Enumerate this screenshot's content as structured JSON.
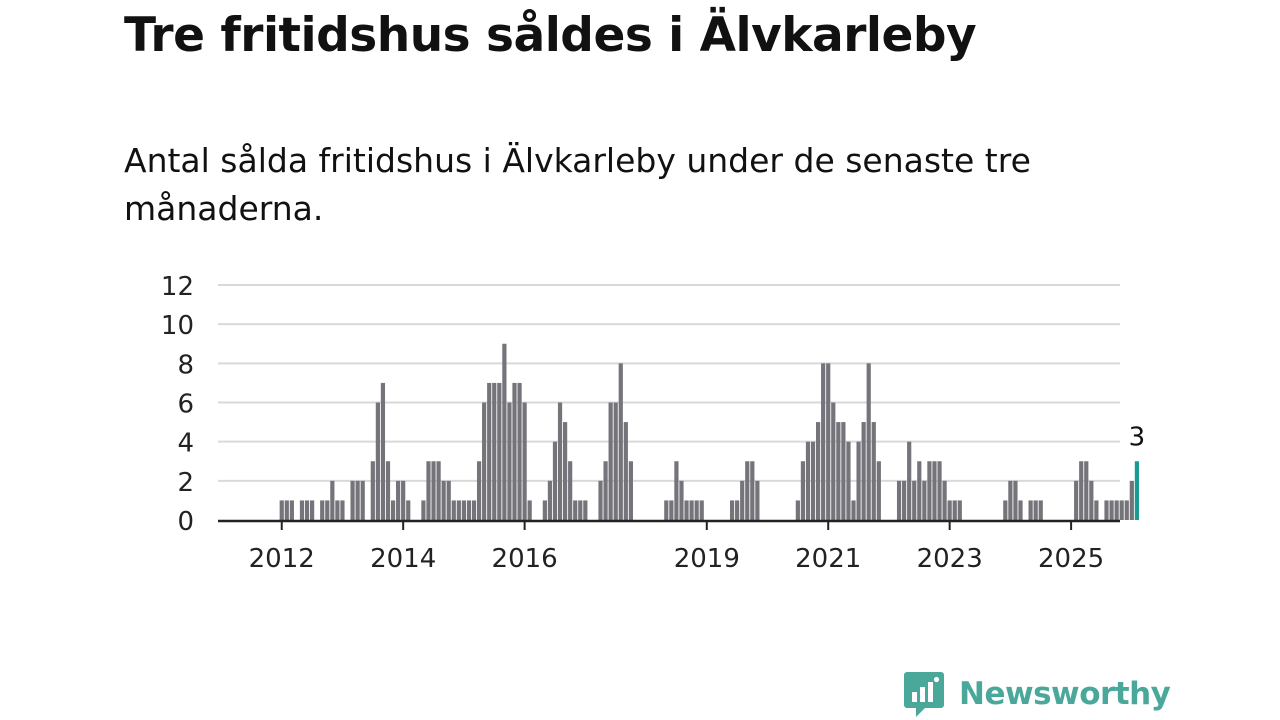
{
  "title": "Tre fritidshus såldes i Älvkarleby",
  "subtitle": "Antal sålda fritidshus i Älvkarleby under de senaste tre månaderna.",
  "brand": {
    "name": "Newsworthy",
    "color": "#4aa89a",
    "icon": "newsworthy-logo-icon"
  },
  "colors": {
    "bar": "#75747a",
    "highlight": "#199a93",
    "grid": "#d9d9d9",
    "axis": "#222222"
  },
  "chart_data": {
    "type": "bar",
    "title": "Tre fritidshus såldes i Älvkarleby",
    "xlabel": "",
    "ylabel": "",
    "ylim": [
      0,
      12
    ],
    "yticks": [
      0,
      2,
      4,
      6,
      8,
      10,
      12
    ],
    "xticks": [
      {
        "label": "2012",
        "month": "2012-01"
      },
      {
        "label": "2014",
        "month": "2014-01"
      },
      {
        "label": "2016",
        "month": "2016-01"
      },
      {
        "label": "2019",
        "month": "2019-01"
      },
      {
        "label": "2021",
        "month": "2021-01"
      },
      {
        "label": "2023",
        "month": "2023-01"
      },
      {
        "label": "2025",
        "month": "2025-01"
      }
    ],
    "grid": true,
    "start_month": "2011-09",
    "highlight_label": "3",
    "values": [
      0,
      0,
      0,
      0,
      1,
      1,
      1,
      0,
      1,
      1,
      1,
      0,
      1,
      1,
      2,
      1,
      1,
      0,
      2,
      2,
      2,
      0,
      3,
      6,
      7,
      3,
      1,
      2,
      2,
      1,
      0,
      0,
      1,
      3,
      3,
      3,
      2,
      2,
      1,
      1,
      1,
      1,
      1,
      3,
      6,
      7,
      7,
      7,
      9,
      6,
      7,
      7,
      6,
      1,
      0,
      0,
      1,
      2,
      4,
      6,
      5,
      3,
      1,
      1,
      1,
      0,
      0,
      2,
      3,
      6,
      6,
      8,
      5,
      3,
      0,
      0,
      0,
      0,
      0,
      0,
      1,
      1,
      3,
      2,
      1,
      1,
      1,
      1,
      0,
      0,
      0,
      0,
      0,
      1,
      1,
      2,
      3,
      3,
      2,
      0,
      0,
      0,
      0,
      0,
      0,
      0,
      1,
      3,
      4,
      4,
      5,
      8,
      8,
      6,
      5,
      5,
      4,
      1,
      4,
      5,
      8,
      5,
      3,
      0,
      0,
      0,
      2,
      2,
      4,
      2,
      3,
      2,
      3,
      3,
      3,
      2,
      1,
      1,
      1,
      0,
      0,
      0,
      0,
      0,
      0,
      0,
      0,
      1,
      2,
      2,
      1,
      0,
      1,
      1,
      1,
      0,
      0,
      0,
      0,
      0,
      0,
      2,
      3,
      3,
      2,
      1,
      0,
      1,
      1,
      1,
      1,
      1,
      2,
      3
    ]
  }
}
